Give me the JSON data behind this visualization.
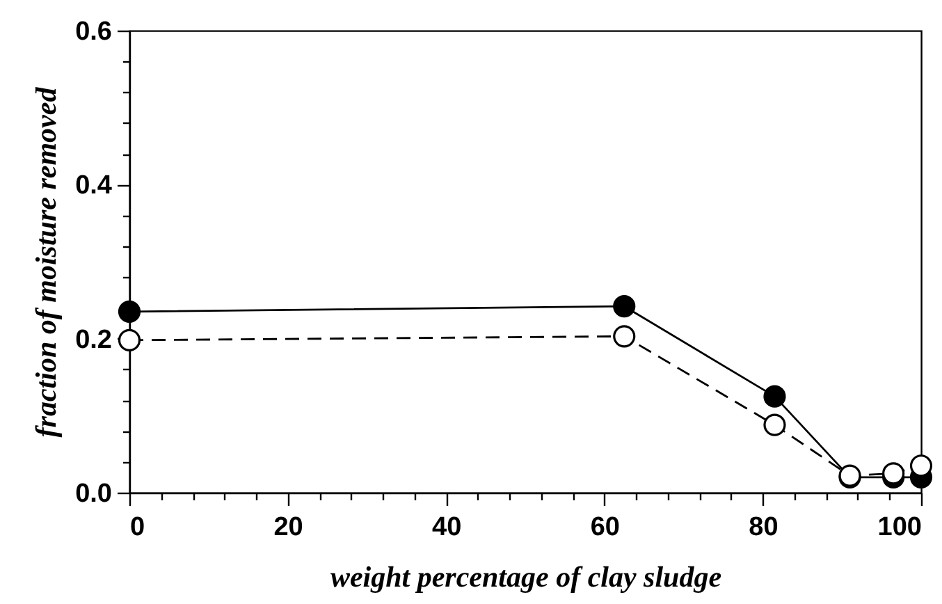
{
  "chart_data": {
    "type": "line",
    "xlabel": "weight percentage of clay sludge",
    "ylabel": "fraction of moisture removed",
    "x": [
      0,
      62.5,
      81.5,
      91,
      96.5,
      100
    ],
    "series": [
      {
        "color": "#000000",
        "line_style": "solid",
        "values": [
          0.235,
          0.242,
          0.125,
          0.02,
          0.02,
          0.02
        ]
      },
      {
        "color": "#ffffff",
        "line_style": "dashed",
        "values": [
          0.198,
          0.203,
          0.088,
          0.022,
          0.025,
          0.035
        ]
      }
    ],
    "marker": "circle",
    "legend": false,
    "grid": false,
    "xlim": [
      0,
      100
    ],
    "ylim": [
      0,
      0.6
    ],
    "xticks": [
      0,
      {
        "value": 4,
        "label": null
      },
      {
        "value": 8,
        "label": null
      },
      {
        "value": 12,
        "label": null
      },
      {
        "value": 16,
        "label": null
      },
      20,
      {
        "value": 24,
        "label": null
      },
      {
        "value": 28,
        "label": null
      },
      {
        "value": 32,
        "label": null
      },
      {
        "value": 36,
        "label": null
      },
      40,
      {
        "value": 44,
        "label": null
      },
      {
        "value": 48,
        "label": null
      },
      {
        "value": 52,
        "label": null
      },
      {
        "value": 56,
        "label": null
      },
      60,
      {
        "value": 64,
        "label": null
      },
      {
        "value": 68,
        "label": null
      },
      {
        "value": 72,
        "label": null
      },
      {
        "value": 76,
        "label": null
      },
      80,
      {
        "value": 84,
        "label": null
      },
      {
        "value": 88,
        "label": null
      },
      {
        "value": 92,
        "label": null
      },
      {
        "value": 96,
        "label": null
      },
      100
    ],
    "yticks": [
      {
        "value": 0,
        "label": "0.0"
      },
      {
        "value": 0.04,
        "label": null
      },
      {
        "value": 0.08,
        "label": null
      },
      {
        "value": 0.12,
        "label": null
      },
      {
        "value": 0.16,
        "label": null
      },
      {
        "value": 0.2,
        "label": "0.2"
      },
      {
        "value": 0.24,
        "label": null
      },
      {
        "value": 0.28,
        "label": null
      },
      {
        "value": 0.32,
        "label": null
      },
      {
        "value": 0.36,
        "label": null
      },
      {
        "value": 0.4,
        "label": "0.4"
      },
      {
        "value": 0.44,
        "label": null
      },
      {
        "value": 0.48,
        "label": null
      },
      {
        "value": 0.52,
        "label": null
      },
      {
        "value": 0.56,
        "label": null
      },
      {
        "value": 0.6,
        "label": "0.6"
      }
    ]
  }
}
